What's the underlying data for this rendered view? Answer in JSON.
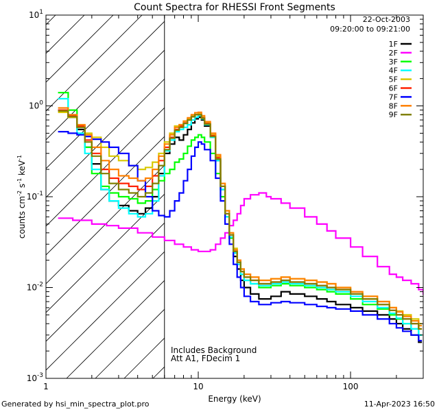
{
  "chart_data": {
    "type": "line",
    "title": "Count Spectra for RHESSI Front Segments",
    "xlabel": "Energy (keV)",
    "ylabel_parts": [
      "counts cm",
      "-2",
      " s",
      "-1",
      " keV",
      "-1"
    ],
    "xscale": "log",
    "yscale": "log",
    "xlim": [
      1,
      300
    ],
    "ylim": [
      0.001,
      10
    ],
    "x_ticks": [
      {
        "value": 1,
        "label": "1"
      },
      {
        "value": 10,
        "label": "10"
      },
      {
        "value": 100,
        "label": "100"
      }
    ],
    "y_ticks": [
      {
        "value": 0.001,
        "base": "10",
        "exp": "-3"
      },
      {
        "value": 0.01,
        "base": "10",
        "exp": "-2"
      },
      {
        "value": 0.1,
        "base": "10",
        "exp": "-1"
      },
      {
        "value": 1,
        "base": "10",
        "exp": "0"
      },
      {
        "value": 10,
        "base": "10",
        "exp": "1"
      }
    ],
    "shaded_region": {
      "x_min": 1,
      "x_max": 6,
      "style": "diagonal hatch"
    },
    "date": "22-Oct-2003",
    "time_range": "09:20:00 to 09:21:00",
    "notes": [
      "Includes Background",
      "Att A1, FDecim 1"
    ],
    "series": [
      {
        "name": "1F",
        "color": "#000000",
        "x": [
          1.2,
          1.4,
          1.6,
          1.8,
          2.0,
          2.3,
          2.6,
          3.0,
          3.5,
          4.0,
          4.5,
          5.0,
          5.5,
          6.0,
          6.5,
          7.0,
          7.5,
          8.0,
          8.5,
          9.0,
          9.5,
          10.0,
          10.5,
          11,
          12,
          13,
          14,
          15,
          16,
          17,
          18,
          19,
          20,
          22,
          25,
          30,
          35,
          40,
          50,
          60,
          70,
          80,
          100,
          120,
          150,
          180,
          200,
          220,
          250,
          280
        ],
        "y": [
          0.9,
          0.75,
          0.55,
          0.35,
          0.23,
          0.12,
          0.09,
          0.08,
          0.07,
          0.065,
          0.075,
          0.1,
          0.18,
          0.3,
          0.38,
          0.45,
          0.42,
          0.48,
          0.55,
          0.65,
          0.72,
          0.75,
          0.7,
          0.6,
          0.45,
          0.25,
          0.12,
          0.06,
          0.035,
          0.022,
          0.016,
          0.012,
          0.01,
          0.0085,
          0.0075,
          0.008,
          0.009,
          0.0085,
          0.008,
          0.0075,
          0.007,
          0.0065,
          0.006,
          0.0055,
          0.005,
          0.0045,
          0.004,
          0.0035,
          0.003,
          0.0025
        ]
      },
      {
        "name": "2F",
        "color": "#ff00ff",
        "x": [
          1.2,
          1.5,
          2.0,
          2.5,
          3.0,
          4.0,
          5.0,
          6.0,
          7.0,
          8.0,
          9.0,
          10.0,
          11,
          12,
          13,
          14,
          15,
          16,
          17,
          18,
          19,
          20,
          22,
          25,
          28,
          30,
          35,
          40,
          50,
          60,
          70,
          80,
          100,
          120,
          150,
          180,
          200,
          220,
          250,
          280,
          300
        ],
        "y": [
          0.058,
          0.055,
          0.05,
          0.048,
          0.045,
          0.04,
          0.036,
          0.033,
          0.03,
          0.028,
          0.026,
          0.025,
          0.025,
          0.026,
          0.03,
          0.035,
          0.04,
          0.048,
          0.055,
          0.065,
          0.08,
          0.095,
          0.105,
          0.11,
          0.1,
          0.095,
          0.085,
          0.075,
          0.06,
          0.05,
          0.042,
          0.035,
          0.028,
          0.022,
          0.017,
          0.014,
          0.013,
          0.012,
          0.011,
          0.0095,
          0.0085
        ]
      },
      {
        "name": "3F",
        "color": "#00ff00",
        "x": [
          1.2,
          1.4,
          1.6,
          1.8,
          2.0,
          2.3,
          2.6,
          3.0,
          3.5,
          4.0,
          4.5,
          5.0,
          5.5,
          6.0,
          6.5,
          7.0,
          7.5,
          8.0,
          8.5,
          9.0,
          9.5,
          10.0,
          10.5,
          11,
          12,
          13,
          14,
          15,
          16,
          17,
          18,
          19,
          20,
          22,
          25,
          30,
          35,
          40,
          50,
          60,
          70,
          80,
          100,
          120,
          150,
          180,
          200,
          220,
          250,
          280
        ],
        "y": [
          1.4,
          0.9,
          0.6,
          0.35,
          0.18,
          0.13,
          0.11,
          0.1,
          0.095,
          0.085,
          0.09,
          0.12,
          0.15,
          0.18,
          0.2,
          0.24,
          0.26,
          0.3,
          0.36,
          0.42,
          0.45,
          0.48,
          0.45,
          0.4,
          0.3,
          0.18,
          0.1,
          0.06,
          0.035,
          0.024,
          0.018,
          0.014,
          0.012,
          0.011,
          0.01,
          0.0105,
          0.011,
          0.0105,
          0.01,
          0.0095,
          0.009,
          0.0085,
          0.0075,
          0.0065,
          0.0058,
          0.005,
          0.0045,
          0.004,
          0.0035,
          0.003
        ]
      },
      {
        "name": "4F",
        "color": "#00ffff",
        "x": [
          1.2,
          1.4,
          1.6,
          1.8,
          2.0,
          2.3,
          2.6,
          3.0,
          3.5,
          4.0,
          4.5,
          5.0,
          5.5,
          6.0,
          6.5,
          7.0,
          7.5,
          8.0,
          8.5,
          9.0,
          9.5,
          10.0,
          10.5,
          11,
          12,
          13,
          14,
          15,
          16,
          17,
          18,
          19,
          20,
          22,
          25,
          30,
          35,
          40,
          50,
          60,
          70,
          80,
          100,
          120,
          150,
          180,
          200,
          220,
          250,
          280
        ],
        "y": [
          1.2,
          0.8,
          0.5,
          0.3,
          0.2,
          0.12,
          0.09,
          0.075,
          0.065,
          0.06,
          0.065,
          0.09,
          0.17,
          0.32,
          0.42,
          0.52,
          0.55,
          0.58,
          0.62,
          0.7,
          0.75,
          0.78,
          0.72,
          0.62,
          0.45,
          0.25,
          0.12,
          0.06,
          0.036,
          0.024,
          0.018,
          0.014,
          0.012,
          0.011,
          0.0105,
          0.011,
          0.0115,
          0.011,
          0.0105,
          0.01,
          0.0095,
          0.009,
          0.008,
          0.007,
          0.006,
          0.0052,
          0.0046,
          0.004,
          0.0035,
          0.003
        ]
      },
      {
        "name": "5F",
        "color": "#d8c800",
        "x": [
          1.2,
          1.4,
          1.6,
          1.8,
          2.0,
          2.3,
          2.6,
          3.0,
          3.5,
          4.0,
          4.5,
          5.0,
          5.5,
          6.0,
          6.5,
          7.0,
          7.5,
          8.0,
          8.5,
          9.0,
          9.5,
          10.0,
          10.5,
          11,
          12,
          13,
          14,
          15,
          16,
          17,
          18,
          19,
          20,
          22,
          25,
          30,
          35,
          40,
          50,
          60,
          70,
          80,
          100,
          120,
          150,
          180,
          200,
          220,
          250,
          280
        ],
        "y": [
          0.85,
          0.75,
          0.6,
          0.5,
          0.45,
          0.35,
          0.28,
          0.25,
          0.22,
          0.2,
          0.21,
          0.24,
          0.3,
          0.4,
          0.5,
          0.6,
          0.62,
          0.68,
          0.72,
          0.78,
          0.8,
          0.82,
          0.75,
          0.65,
          0.48,
          0.28,
          0.14,
          0.07,
          0.04,
          0.027,
          0.02,
          0.016,
          0.014,
          0.013,
          0.012,
          0.0125,
          0.013,
          0.0125,
          0.012,
          0.0115,
          0.011,
          0.01,
          0.009,
          0.008,
          0.007,
          0.006,
          0.0055,
          0.005,
          0.0045,
          0.004
        ]
      },
      {
        "name": "6F",
        "color": "#ff2000",
        "x": [
          1.2,
          1.4,
          1.6,
          1.8,
          2.0,
          2.3,
          2.6,
          3.0,
          3.5,
          4.0,
          4.5,
          5.0,
          5.5,
          6.0,
          6.5,
          7.0,
          7.5,
          8.0,
          8.5,
          9.0,
          9.5,
          10.0,
          10.5,
          11,
          12,
          13,
          14,
          15,
          16,
          17,
          18,
          19,
          20,
          22,
          25,
          30,
          35,
          40,
          50,
          60,
          70,
          80,
          100,
          120,
          150,
          180,
          200,
          220,
          250,
          280
        ],
        "y": [
          0.9,
          0.78,
          0.6,
          0.42,
          0.3,
          0.2,
          0.16,
          0.14,
          0.13,
          0.12,
          0.13,
          0.17,
          0.25,
          0.35,
          0.45,
          0.55,
          0.6,
          0.65,
          0.7,
          0.76,
          0.8,
          0.8,
          0.74,
          0.64,
          0.47,
          0.27,
          0.13,
          0.065,
          0.038,
          0.025,
          0.019,
          0.015,
          0.013,
          0.012,
          0.011,
          0.0115,
          0.012,
          0.0115,
          0.011,
          0.0105,
          0.01,
          0.0095,
          0.0085,
          0.0075,
          0.0065,
          0.0056,
          0.005,
          0.0045,
          0.004,
          0.0035
        ]
      },
      {
        "name": "7F",
        "color": "#0000ff",
        "x": [
          1.2,
          1.4,
          1.6,
          1.8,
          2.0,
          2.3,
          2.6,
          3.0,
          3.5,
          4.0,
          4.5,
          5.0,
          5.5,
          6.0,
          6.5,
          7.0,
          7.5,
          8.0,
          8.5,
          9.0,
          9.5,
          10.0,
          10.5,
          11,
          12,
          13,
          14,
          15,
          16,
          17,
          18,
          19,
          20,
          22,
          25,
          30,
          35,
          40,
          50,
          60,
          70,
          80,
          100,
          120,
          150,
          180,
          200,
          220,
          250,
          280
        ],
        "y": [
          0.52,
          0.5,
          0.48,
          0.46,
          0.43,
          0.4,
          0.35,
          0.3,
          0.22,
          0.15,
          0.1,
          0.07,
          0.062,
          0.06,
          0.07,
          0.09,
          0.11,
          0.15,
          0.2,
          0.28,
          0.35,
          0.4,
          0.38,
          0.33,
          0.25,
          0.16,
          0.09,
          0.05,
          0.03,
          0.018,
          0.013,
          0.01,
          0.008,
          0.007,
          0.0065,
          0.0068,
          0.007,
          0.0068,
          0.0065,
          0.0062,
          0.006,
          0.0058,
          0.0055,
          0.005,
          0.0045,
          0.004,
          0.0036,
          0.0033,
          0.003,
          0.0026
        ]
      },
      {
        "name": "8F",
        "color": "#ff8000",
        "x": [
          1.2,
          1.4,
          1.6,
          1.8,
          2.0,
          2.3,
          2.6,
          3.0,
          3.5,
          4.0,
          4.5,
          5.0,
          5.5,
          6.0,
          6.5,
          7.0,
          7.5,
          8.0,
          8.5,
          9.0,
          9.5,
          10.0,
          10.5,
          11,
          12,
          13,
          14,
          15,
          16,
          17,
          18,
          19,
          20,
          22,
          25,
          30,
          35,
          40,
          50,
          60,
          70,
          80,
          100,
          120,
          150,
          180,
          200,
          220,
          250,
          280
        ],
        "y": [
          0.95,
          0.8,
          0.62,
          0.48,
          0.35,
          0.25,
          0.2,
          0.17,
          0.16,
          0.15,
          0.16,
          0.2,
          0.28,
          0.38,
          0.48,
          0.58,
          0.62,
          0.68,
          0.74,
          0.8,
          0.84,
          0.85,
          0.78,
          0.67,
          0.5,
          0.29,
          0.14,
          0.07,
          0.04,
          0.026,
          0.02,
          0.016,
          0.014,
          0.013,
          0.012,
          0.0125,
          0.013,
          0.0125,
          0.012,
          0.0115,
          0.011,
          0.01,
          0.009,
          0.008,
          0.007,
          0.006,
          0.0054,
          0.0048,
          0.0043,
          0.0038
        ]
      },
      {
        "name": "9F",
        "color": "#808000",
        "x": [
          1.2,
          1.4,
          1.6,
          1.8,
          2.0,
          2.3,
          2.6,
          3.0,
          3.5,
          4.0,
          4.5,
          5.0,
          5.5,
          6.0,
          6.5,
          7.0,
          7.5,
          8.0,
          8.5,
          9.0,
          9.5,
          10.0,
          10.5,
          11,
          12,
          13,
          14,
          15,
          16,
          17,
          18,
          19,
          20,
          22,
          25,
          30,
          35,
          40,
          50,
          60,
          70,
          80,
          100,
          120,
          150,
          180,
          200,
          220,
          250,
          280
        ],
        "y": [
          0.88,
          0.76,
          0.58,
          0.4,
          0.28,
          0.18,
          0.14,
          0.12,
          0.11,
          0.1,
          0.11,
          0.14,
          0.22,
          0.33,
          0.44,
          0.54,
          0.58,
          0.64,
          0.7,
          0.76,
          0.8,
          0.8,
          0.73,
          0.63,
          0.46,
          0.26,
          0.13,
          0.065,
          0.038,
          0.025,
          0.019,
          0.015,
          0.013,
          0.012,
          0.011,
          0.0115,
          0.012,
          0.0115,
          0.011,
          0.0105,
          0.01,
          0.0095,
          0.0085,
          0.0075,
          0.0065,
          0.0056,
          0.005,
          0.0045,
          0.004,
          0.0035
        ]
      }
    ]
  },
  "footer": {
    "left": "Generated by hsi_min_spectra_plot.pro",
    "right": "11-Apr-2023 16:50"
  }
}
